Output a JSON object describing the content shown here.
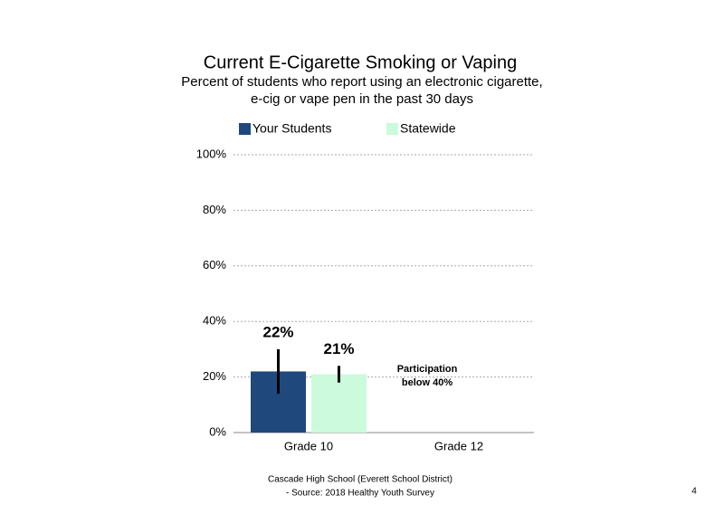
{
  "chart_data": {
    "type": "bar",
    "title": "Current E-Cigarette Smoking or Vaping",
    "subtitle": [
      "Percent of students who report using an electronic cigarette,",
      "e-cig or vape pen in the past 30 days"
    ],
    "categories": [
      "Grade 10",
      "Grade 12"
    ],
    "series": [
      {
        "name": "Your Students",
        "color": "#1f497d",
        "values": [
          22,
          null
        ],
        "errors": [
          8,
          null
        ],
        "value_labels": [
          "22%",
          null
        ]
      },
      {
        "name": "Statewide",
        "color": "#ccfadc",
        "values": [
          21,
          null
        ],
        "errors": [
          3,
          null
        ],
        "value_labels": [
          "21%",
          null
        ]
      }
    ],
    "ylim": [
      0,
      100
    ],
    "yticks": [
      {
        "value": 0,
        "label": "0%"
      },
      {
        "value": 20,
        "label": "20%"
      },
      {
        "value": 40,
        "label": "40%"
      },
      {
        "value": 60,
        "label": "60%"
      },
      {
        "value": 80,
        "label": "80%"
      },
      {
        "value": 100,
        "label": "100%"
      }
    ],
    "grid": true,
    "legend": "top",
    "annotation": [
      "Participation",
      "below 40%"
    ],
    "footer": [
      "Cascade High School (Everett School District)",
      "- Source: 2018 Healthy Youth Survey"
    ],
    "page_number": "4"
  }
}
